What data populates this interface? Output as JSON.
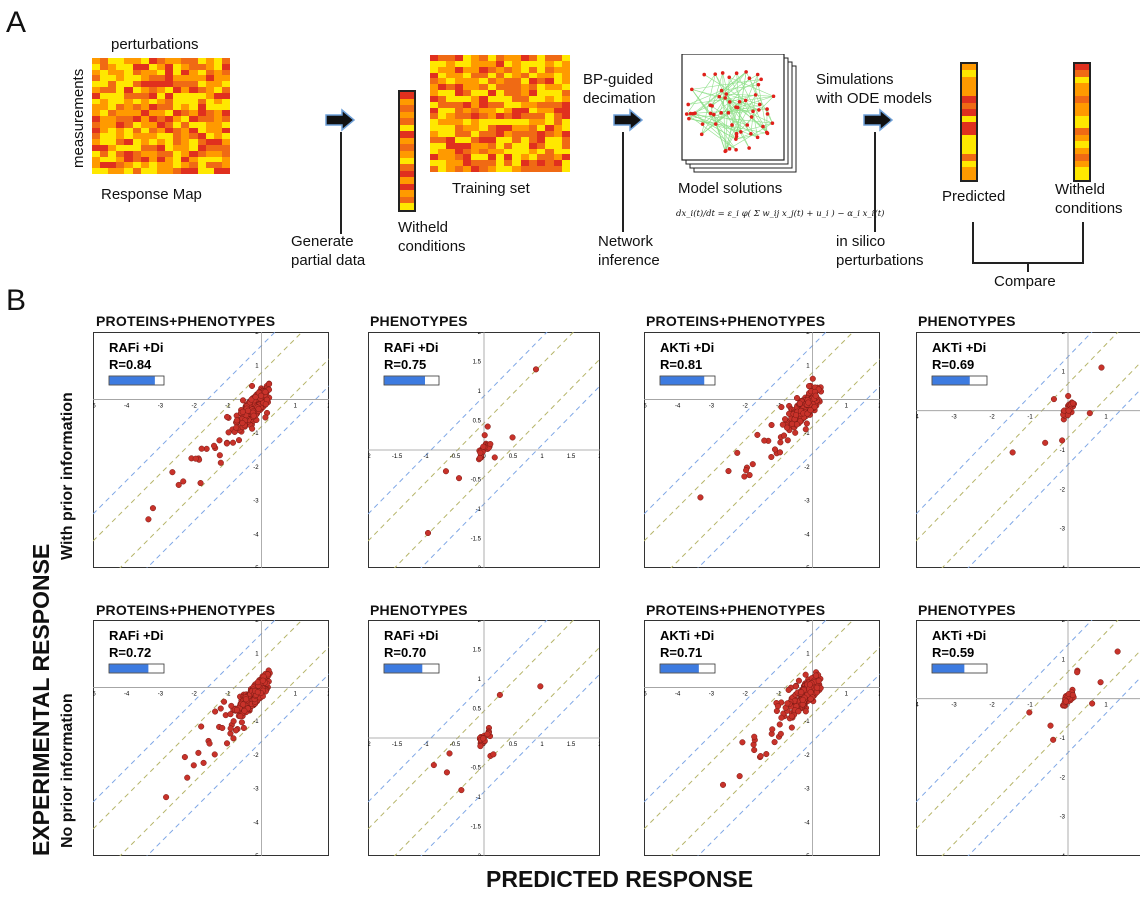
{
  "panel_a": {
    "letter": "A",
    "perturbations_label": "perturbations",
    "measurements_label": "measurements",
    "response_map_label": "Response Map",
    "generate_label_line1": "Generate",
    "generate_label_line2": "partial data",
    "withheld_label_line1": "Witheld",
    "withheld_label_line2": "conditions",
    "training_set_label": "Training set",
    "bp_label_line1": "BP-guided",
    "bp_label_line2": "decimation",
    "network_label_line1": "Network",
    "network_label_line2": "inference",
    "model_solutions_label": "Model solutions",
    "simulations_line1": "Simulations",
    "simulations_line2": "with ODE models",
    "insilico_line1": "in silico",
    "insilico_line2": "perturbations",
    "predicted_label": "Predicted",
    "withheld2_line1": "Witheld",
    "withheld2_line2": "conditions",
    "compare_label": "Compare",
    "equation": "dx_i(t)/dt = ε_i φ( Σ w_ij x_j(t) + u_i ) − α_i x_i(t)"
  },
  "panel_b": {
    "letter": "B",
    "y_axis_label": "EXPERIMENTAL RESPONSE",
    "x_axis_label": "PREDICTED RESPONSE",
    "row_labels": [
      "With prior information",
      "No prior information"
    ],
    "plots": [
      {
        "heading": "PROTEINS+PHENOTYPES",
        "condition": "RAFi +Di",
        "r_label": "R=0.84",
        "r": 0.84
      },
      {
        "heading": "PHENOTYPES",
        "condition": "RAFi +Di",
        "r_label": "R=0.75",
        "r": 0.75
      },
      {
        "heading": "PROTEINS+PHENOTYPES",
        "condition": "AKTi +Di",
        "r_label": "R=0.81",
        "r": 0.81
      },
      {
        "heading": "PHENOTYPES",
        "condition": "AKTi +Di",
        "r_label": "R=0.69",
        "r": 0.69
      },
      {
        "heading": "PROTEINS+PHENOTYPES",
        "condition": "RAFi +Di",
        "r_label": "R=0.72",
        "r": 0.72
      },
      {
        "heading": "PHENOTYPES",
        "condition": "RAFi +Di",
        "r_label": "R=0.70",
        "r": 0.7
      },
      {
        "heading": "PROTEINS+PHENOTYPES",
        "condition": "AKTi +Di",
        "r_label": "R=0.71",
        "r": 0.71
      },
      {
        "heading": "PHENOTYPES",
        "condition": "AKTi +Di",
        "r_label": "R=0.59",
        "r": 0.59
      }
    ]
  },
  "colors": {
    "heat_low": "#ffe800",
    "heat_mid": "#ff9a00",
    "heat_high": "#e0301e",
    "point": "#c8322a",
    "bar_fill": "#3d7be0",
    "diag_blue": "#7fa7e6",
    "diag_olive": "#b6b56a"
  }
}
